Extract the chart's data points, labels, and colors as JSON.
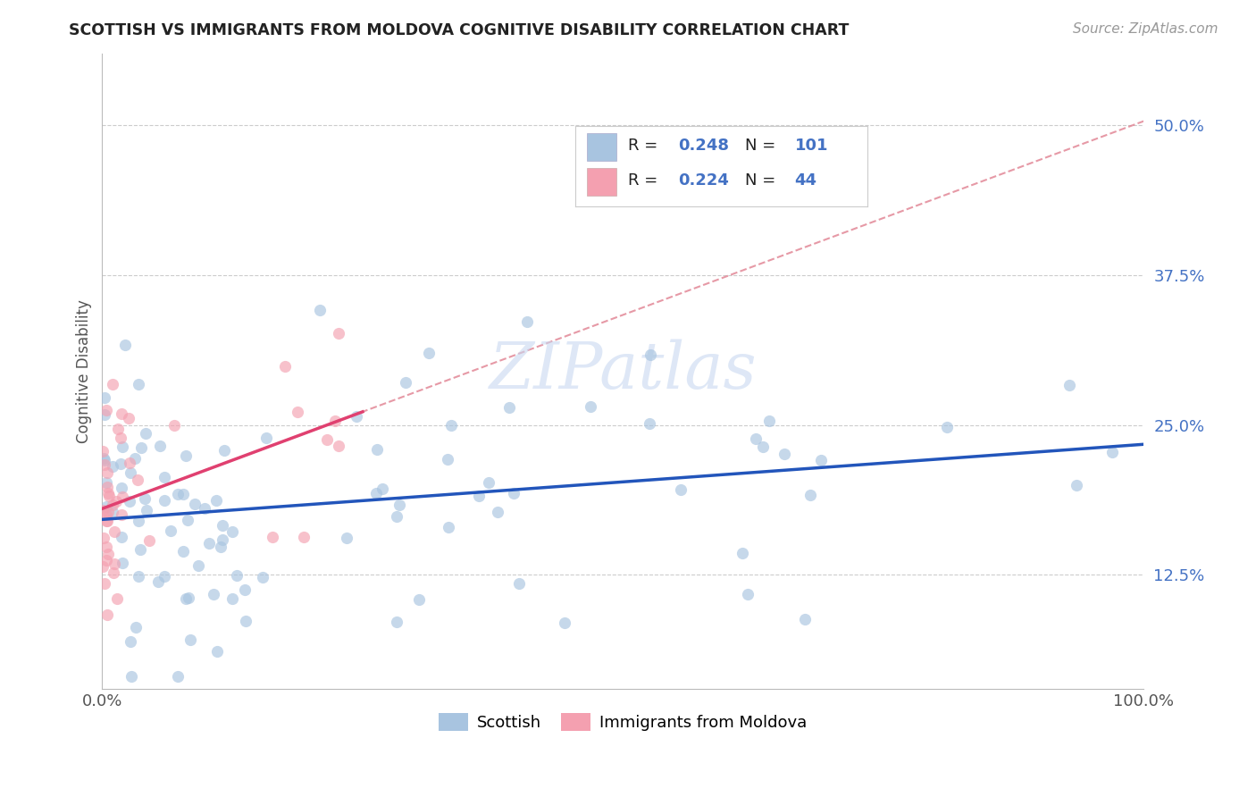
{
  "title": "SCOTTISH VS IMMIGRANTS FROM MOLDOVA COGNITIVE DISABILITY CORRELATION CHART",
  "source": "Source: ZipAtlas.com",
  "ylabel": "Cognitive Disability",
  "ytick_labels": [
    "12.5%",
    "25.0%",
    "37.5%",
    "50.0%"
  ],
  "ytick_values": [
    0.125,
    0.25,
    0.375,
    0.5
  ],
  "xlim": [
    0.0,
    1.0
  ],
  "ylim": [
    0.03,
    0.56
  ],
  "legend1_r": "0.248",
  "legend1_n": "101",
  "legend2_r": "0.224",
  "legend2_n": "44",
  "color_scottish": "#a8c4e0",
  "color_moldova": "#f4a0b0",
  "line_color_scottish": "#2255bb",
  "line_color_moldova": "#e04070",
  "dashed_line_color": "#e08090",
  "background_color": "#ffffff",
  "grid_color": "#cccccc",
  "title_color": "#222222",
  "legend_r_color": "#4472c4",
  "legend_n_color": "#4472c4",
  "watermark_color": "#c8d8f0",
  "sc_line_x0": 0.0,
  "sc_line_y0": 0.195,
  "sc_line_x1": 1.0,
  "sc_line_y1": 0.275,
  "md_line_x0": 0.0,
  "md_line_y0": 0.19,
  "md_line_x1": 0.25,
  "md_line_y1": 0.255,
  "dash_line_x0": 0.12,
  "dash_line_y0": 0.23,
  "dash_line_x1": 1.0,
  "dash_line_y1": 0.52
}
